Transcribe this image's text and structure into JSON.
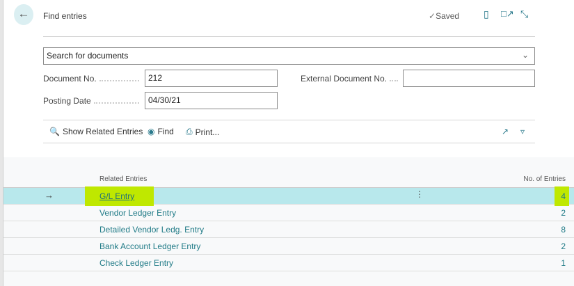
{
  "header": {
    "title": "Find entries",
    "saved_label": "Saved",
    "icons": [
      "back-arrow-icon",
      "bookmark-icon",
      "open-new-window-icon",
      "expand-icon"
    ]
  },
  "search": {
    "value": "Search for documents"
  },
  "fields": {
    "document_no_label": "Document No.",
    "document_no": "212",
    "external_document_no_label": "External Document No.",
    "external_document_no": "",
    "posting_date_label": "Posting Date",
    "posting_date": "04/30/21"
  },
  "toolbar": {
    "show_related": "Show Related Entries",
    "find": "Find",
    "print": "Print..."
  },
  "table": {
    "col_related": "Related Entries",
    "col_count": "No. of Entries",
    "rows": [
      {
        "name": "G/L Entry",
        "count": "4"
      },
      {
        "name": "Vendor Ledger Entry",
        "count": "2"
      },
      {
        "name": "Detailed Vendor Ledg. Entry",
        "count": "8"
      },
      {
        "name": "Bank Account Ledger Entry",
        "count": "2"
      },
      {
        "name": "Check Ledger Entry",
        "count": "1"
      }
    ]
  },
  "colors": {
    "accent": "#1f7a86",
    "selected_row": "#b8e8ec",
    "highlight": "#bfe800"
  }
}
